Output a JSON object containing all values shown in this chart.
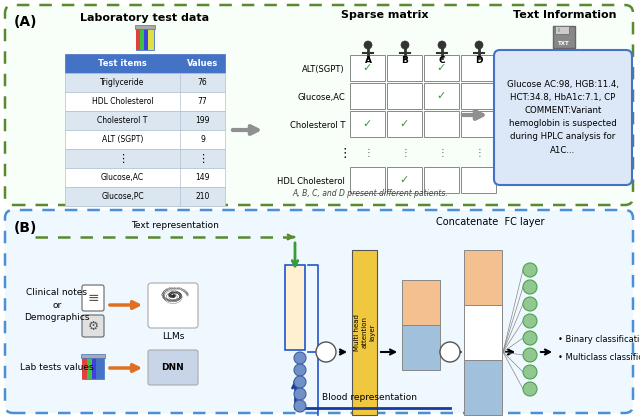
{
  "fig_width": 6.4,
  "fig_height": 4.19,
  "dpi": 100,
  "bg_color": "#ffffff",
  "panel_A_label": "(A)",
  "panel_B_label": "(B)",
  "lab_title": "Laboratory test data",
  "sparse_title": "Sparse matrix",
  "text_title": "Text Information",
  "table_header": [
    "Test items",
    "Values"
  ],
  "table_rows": [
    [
      "Triglyceride",
      "76"
    ],
    [
      "HDL Cholesterol",
      "77"
    ],
    [
      "Cholesterol T",
      "199"
    ],
    [
      "ALT (SGPT)",
      "9"
    ],
    [
      "⋮",
      "⋮"
    ],
    [
      "Glucose,AC",
      "149"
    ],
    [
      "Glucose,PC",
      "210"
    ]
  ],
  "matrix_rows": [
    "ALT(SGPT)",
    "Glucose,AC",
    "Cholesterol T",
    "⋮",
    "HDL Cholesterol"
  ],
  "matrix_cols": [
    "A",
    "B",
    "C",
    "D"
  ],
  "matrix_checks": [
    [
      1,
      0,
      1,
      0
    ],
    [
      0,
      0,
      1,
      0
    ],
    [
      1,
      1,
      0,
      0
    ],
    [
      0,
      0,
      0,
      0
    ],
    [
      0,
      1,
      0,
      0
    ]
  ],
  "footnote": "A, B, C, and D present different patients.",
  "text_box_content": "Glucose AC:98, HGB:11.4,\nHCT:34.8, HbA1c:7.1, CP\nCOMMENT:Variant\nhemoglobin is suspected\nduring HPLC analysis for\nA1C...",
  "label_clinical": "Clinical notes\nor\nDemographics",
  "label_lab": "Lab tests values",
  "label_llm": "LLMs",
  "label_dnn": "DNN",
  "label_text_rep": "Text representation",
  "label_blood_rep": "Blood representation",
  "label_mha": "Multi head\nattention\nlayer",
  "label_concat": "Concatenate  FC layer",
  "label_outputs": [
    "• Binary classification",
    "• Multiclass classification"
  ],
  "green_dashed": "#5a8a30",
  "blue_dashed": "#4a90d9",
  "header_blue": "#4472c4",
  "arrow_gray": "#909090",
  "arrow_orange": "#e07020",
  "arrow_green": "#3a9a3a",
  "arrow_darkblue": "#1a3a9a",
  "text_box_border": "#4472c4",
  "text_box_fill": "#dce8f8",
  "attn_fill": "#f0c840",
  "dnn_fill": "#c8d4e8",
  "llm_rect_fill": "#fef0d0",
  "llm_rect_border": "#2255cc",
  "concat_orange": "#f5c090",
  "concat_blue": "#a0c0dc",
  "nn_green": "#90c890",
  "row_colors_even": "#dce6f1",
  "row_colors_odd": "#ffffff"
}
